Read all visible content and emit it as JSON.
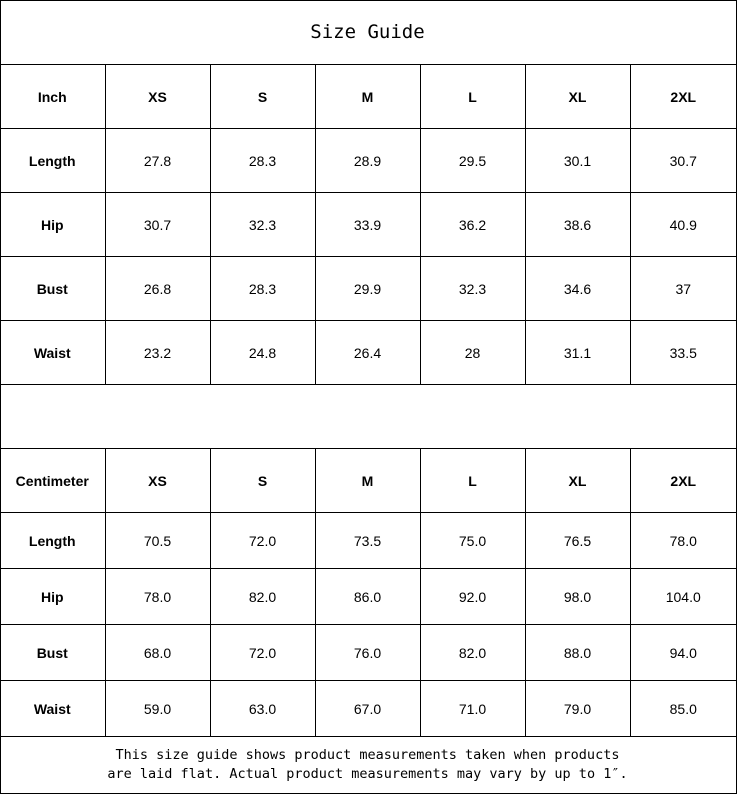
{
  "title": "Size Guide",
  "inch_table": {
    "headers": [
      "Inch",
      "XS",
      "S",
      "M",
      "L",
      "XL",
      "2XL"
    ],
    "rows": [
      {
        "label": "Length",
        "values": [
          "27.8",
          "28.3",
          "28.9",
          "29.5",
          "30.1",
          "30.7"
        ]
      },
      {
        "label": "Hip",
        "values": [
          "30.7",
          "32.3",
          "33.9",
          "36.2",
          "38.6",
          "40.9"
        ]
      },
      {
        "label": "Bust",
        "values": [
          "26.8",
          "28.3",
          "29.9",
          "32.3",
          "34.6",
          "37"
        ]
      },
      {
        "label": "Waist",
        "values": [
          "23.2",
          "24.8",
          "26.4",
          "28",
          "31.1",
          "33.5"
        ]
      }
    ]
  },
  "cm_table": {
    "headers": [
      "Centimeter",
      "XS",
      "S",
      "M",
      "L",
      "XL",
      "2XL"
    ],
    "rows": [
      {
        "label": "Length",
        "values": [
          "70.5",
          "72.0",
          "73.5",
          "75.0",
          "76.5",
          "78.0"
        ]
      },
      {
        "label": "Hip",
        "values": [
          "78.0",
          "82.0",
          "86.0",
          "92.0",
          "98.0",
          "104.0"
        ]
      },
      {
        "label": "Bust",
        "values": [
          "68.0",
          "72.0",
          "76.0",
          "82.0",
          "88.0",
          "94.0"
        ]
      },
      {
        "label": "Waist",
        "values": [
          "59.0",
          "63.0",
          "67.0",
          "71.0",
          "79.0",
          "85.0"
        ]
      }
    ]
  },
  "footer": {
    "line1": "This size guide shows product measurements taken when products",
    "line2": "are laid flat. Actual product measurements may vary by up to 1″."
  }
}
